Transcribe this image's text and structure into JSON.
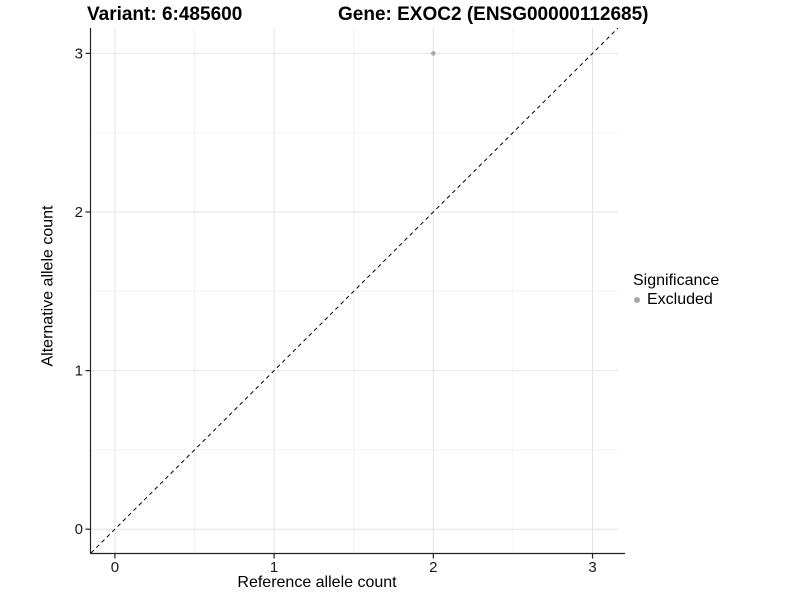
{
  "header": {
    "variant_label": "Variant: 6:485600",
    "gene_label": "Gene: EXOC2 (ENSG00000112685)"
  },
  "chart_data": {
    "type": "scatter",
    "title": "Variant: 6:485600          Gene: EXOC2 (ENSG00000112685)",
    "xlabel": "Reference allele count",
    "ylabel": "Alternative allele count",
    "xlim": [
      -0.15,
      3.16
    ],
    "ylim": [
      -0.15,
      3.16
    ],
    "xticks": [
      0,
      1,
      2,
      3
    ],
    "yticks": [
      0,
      1,
      2,
      3
    ],
    "x_minor_ticks": [
      0.5,
      1.5,
      2.5
    ],
    "y_minor_ticks": [
      0.5,
      1.5,
      2.5
    ],
    "grid": true,
    "series": [
      {
        "name": "Excluded",
        "color": "#a8a8a8",
        "marker": "circle",
        "points": [
          {
            "x": 2,
            "y": 3
          }
        ]
      }
    ],
    "reference_line": {
      "type": "identity",
      "equation": "y = x",
      "style": "dashed",
      "color": "#000000"
    },
    "legend": {
      "title": "Significance",
      "position": "right",
      "entries": [
        {
          "label": "Excluded",
          "color": "#a8a8a8",
          "marker": "circle"
        }
      ]
    },
    "colors": {
      "background": "#ffffff",
      "grid_major": "#e4e4e4",
      "grid_minor": "#f2f2f2",
      "axis": "#222222",
      "tick_text": "#1a1a1a",
      "point": "#a8a8a8"
    }
  }
}
